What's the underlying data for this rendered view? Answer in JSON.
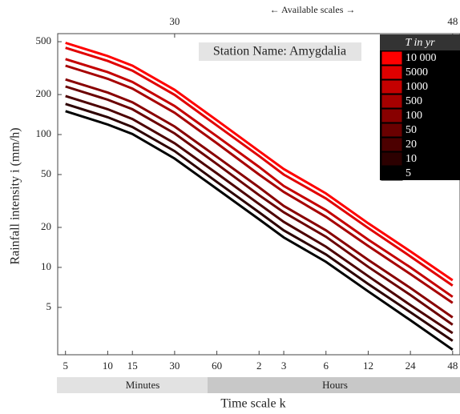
{
  "chart_data": {
    "type": "line",
    "title": "Station Name: Amygdalia",
    "top_label": "← Available scales →",
    "x_label": "Time scale k",
    "y_label": "Rainfall intensity i (mm/h)",
    "legend_title": "T in yr",
    "scale_groups": [
      "Minutes",
      "Hours"
    ],
    "xscale": "log",
    "yscale": "log",
    "xlim": [
      4.4,
      3250
    ],
    "ylim": [
      2.2,
      575
    ],
    "x": [
      5,
      10,
      15,
      30,
      60,
      120,
      180,
      360,
      720,
      1440,
      2880
    ],
    "xticks": [
      5,
      10,
      15,
      30,
      60,
      {
        "value": 120,
        "label": "2"
      },
      {
        "value": 180,
        "label": "3"
      },
      {
        "value": 360,
        "label": "6"
      },
      {
        "value": 720,
        "label": "12"
      },
      {
        "value": 1440,
        "label": "24"
      },
      {
        "value": 2880,
        "label": "48"
      }
    ],
    "top_xticks": [
      30,
      {
        "value": 2880,
        "label": "48"
      }
    ],
    "yticks": [
      5,
      10,
      20,
      50,
      100,
      200,
      500
    ],
    "series": [
      {
        "name": "10 000",
        "color": "#ff0000",
        "values": [
          490,
          390,
          330,
          217,
          128,
          75,
          55,
          36,
          21.5,
          13.2,
          8
        ]
      },
      {
        "name": "5000",
        "color": "#e00000",
        "values": [
          450,
          358,
          303,
          199,
          117,
          69,
          50,
          33,
          19.8,
          12.1,
          7.3
        ]
      },
      {
        "name": "1000",
        "color": "#c40000",
        "values": [
          370,
          295,
          249,
          164,
          97,
          57,
          41,
          27,
          16.2,
          10,
          6
        ]
      },
      {
        "name": "500",
        "color": "#a60000",
        "values": [
          330,
          263,
          222,
          146,
          86,
          50,
          37,
          24,
          14.5,
          8.9,
          5.4
        ]
      },
      {
        "name": "100",
        "color": "#880000",
        "values": [
          260,
          207,
          175,
          115,
          68,
          40,
          29,
          19,
          11.4,
          7,
          4.2
        ]
      },
      {
        "name": "50",
        "color": "#6a0000",
        "values": [
          230,
          183,
          155,
          102,
          60,
          35,
          26,
          17,
          10.1,
          6.2,
          3.7
        ]
      },
      {
        "name": "20",
        "color": "#4c0000",
        "values": [
          195,
          155,
          131,
          86,
          51,
          30,
          22,
          14.3,
          8.6,
          5.2,
          3.2
        ]
      },
      {
        "name": "10",
        "color": "#2c0000",
        "values": [
          170,
          135,
          114,
          75,
          44,
          26,
          19,
          12.5,
          7.5,
          4.6,
          2.8
        ]
      },
      {
        "name": "5",
        "color": "#000000",
        "values": [
          150,
          119,
          101,
          66,
          39,
          23,
          16.8,
          11,
          6.6,
          4,
          2.4
        ]
      }
    ]
  }
}
